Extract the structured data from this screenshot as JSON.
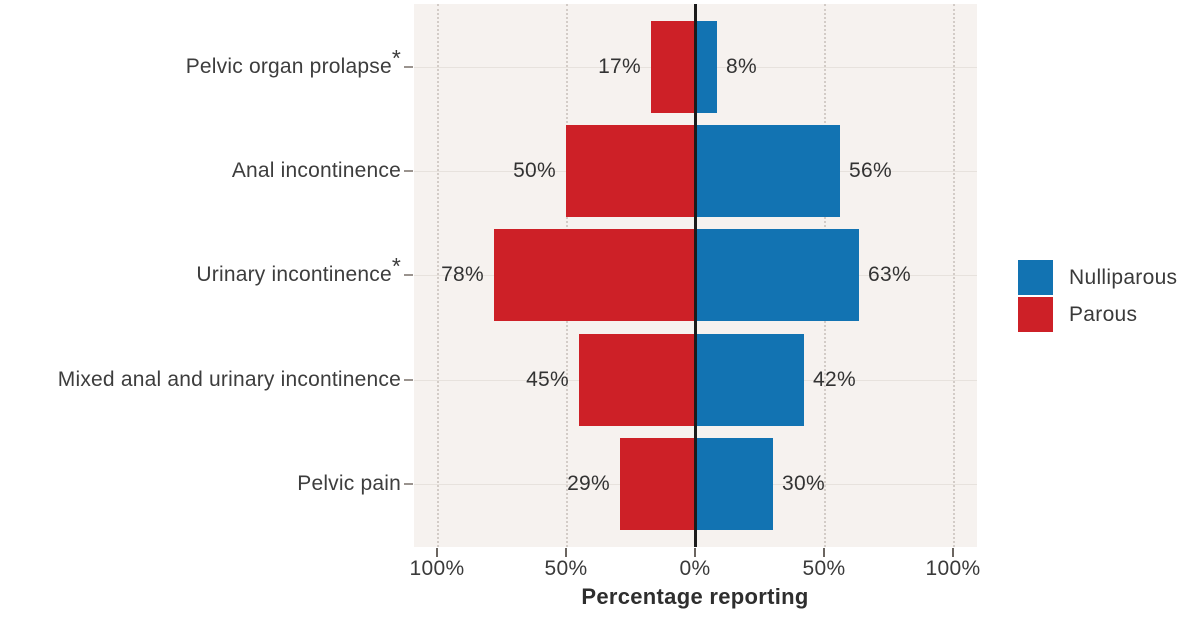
{
  "chart_data": {
    "type": "bar",
    "variant": "diverging-horizontal-butterfly",
    "title": "",
    "xlabel": "Percentage reporting",
    "ylabel": "",
    "categories": [
      {
        "label": "Pelvic organ prolapse",
        "star": "*"
      },
      {
        "label": "Anal incontinence",
        "star": ""
      },
      {
        "label": "Urinary incontinence",
        "star": "*"
      },
      {
        "label": "Mixed anal and urinary incontinence",
        "star": ""
      },
      {
        "label": "Pelvic pain",
        "star": ""
      }
    ],
    "series": [
      {
        "name": "Parous",
        "side": "left",
        "color": "#cd2027",
        "values": [
          17,
          50,
          78,
          45,
          29
        ],
        "value_labels": [
          "17%",
          "50%",
          "78%",
          "45%",
          "29%"
        ]
      },
      {
        "name": "Nulliparous",
        "side": "right",
        "color": "#1273b2",
        "values": [
          8,
          56,
          63,
          42,
          30
        ],
        "value_labels": [
          "8%",
          "56%",
          "63%",
          "42%",
          "30%"
        ]
      }
    ],
    "x_axis": {
      "tick_values": [
        -100,
        -50,
        0,
        50,
        100
      ],
      "tick_labels": [
        "100%",
        "50%",
        "0%",
        "50%",
        "100%"
      ]
    },
    "grid": {
      "vertical": "dotted",
      "horizontal": "solid",
      "zero_line": true
    },
    "legend_position": "right"
  },
  "legend": {
    "items": [
      {
        "label": "Nulliparous",
        "color": "#1273b2"
      },
      {
        "label": "Parous",
        "color": "#cd2027"
      }
    ]
  },
  "axis": {
    "title": "Percentage reporting"
  },
  "colors": {
    "parous_red": "#cd2027",
    "nulliparous_blue": "#1273b2",
    "panel_background": "#f6f2ef",
    "zero_line": "#1b1b1b",
    "text": "#3a3a3a"
  }
}
